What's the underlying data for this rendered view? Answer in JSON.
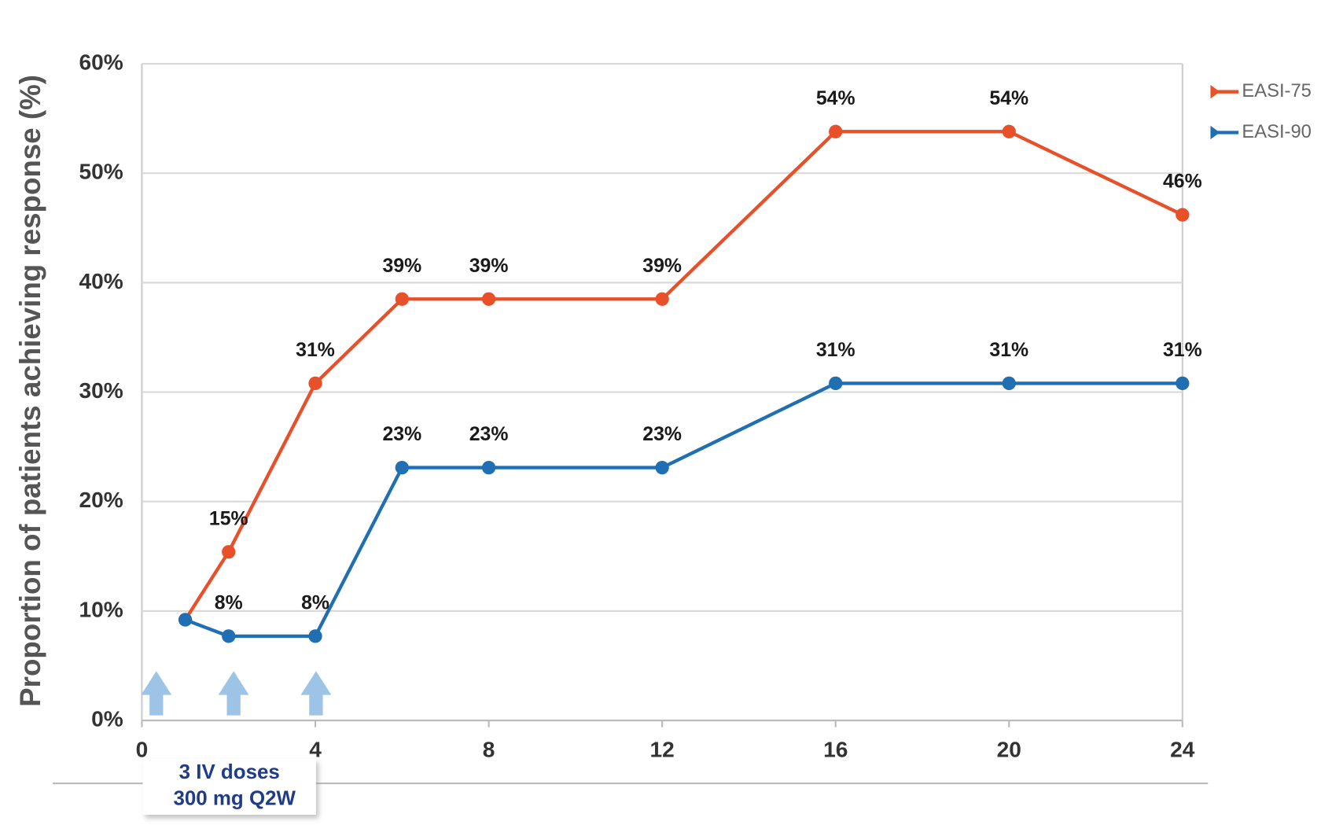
{
  "chart_data": {
    "type": "line",
    "y_label": "Proportion of patients achieving response (%)",
    "annotation": [
      "3 IV doses",
      "300 mg Q2W"
    ],
    "x": [
      1,
      2,
      4,
      6,
      8,
      12,
      16,
      20,
      24
    ],
    "xlim": [
      0,
      24
    ],
    "xticks": [
      0,
      4,
      8,
      12,
      16,
      20,
      24
    ],
    "ylim": [
      0,
      60
    ],
    "yticks": [
      {
        "value": 0,
        "label": "0%"
      },
      {
        "value": 10,
        "label": "10%"
      },
      {
        "value": 20,
        "label": "20%"
      },
      {
        "value": 30,
        "label": "30%"
      },
      {
        "value": 40,
        "label": "40%"
      },
      {
        "value": 50,
        "label": "50%"
      },
      {
        "value": 60,
        "label": "60%"
      }
    ],
    "grid": true,
    "legend": "right",
    "series": [
      {
        "name": "EASI-75",
        "color": "#e8502a",
        "values": [
          9.2,
          15.4,
          30.8,
          38.5,
          38.5,
          38.5,
          53.8,
          53.8,
          46.2
        ],
        "value_labels": [
          null,
          "15%",
          "31%",
          "39%",
          "39%",
          "39%",
          "54%",
          "54%",
          "46%"
        ]
      },
      {
        "name": "EASI-90",
        "color": "#1f6fb2",
        "values": [
          9.2,
          7.7,
          7.7,
          23.1,
          23.1,
          23.1,
          30.8,
          30.8,
          30.8
        ],
        "value_labels": [
          null,
          "8%",
          "8%",
          "23%",
          "23%",
          "23%",
          "31%",
          "31%",
          "31%"
        ]
      }
    ]
  }
}
